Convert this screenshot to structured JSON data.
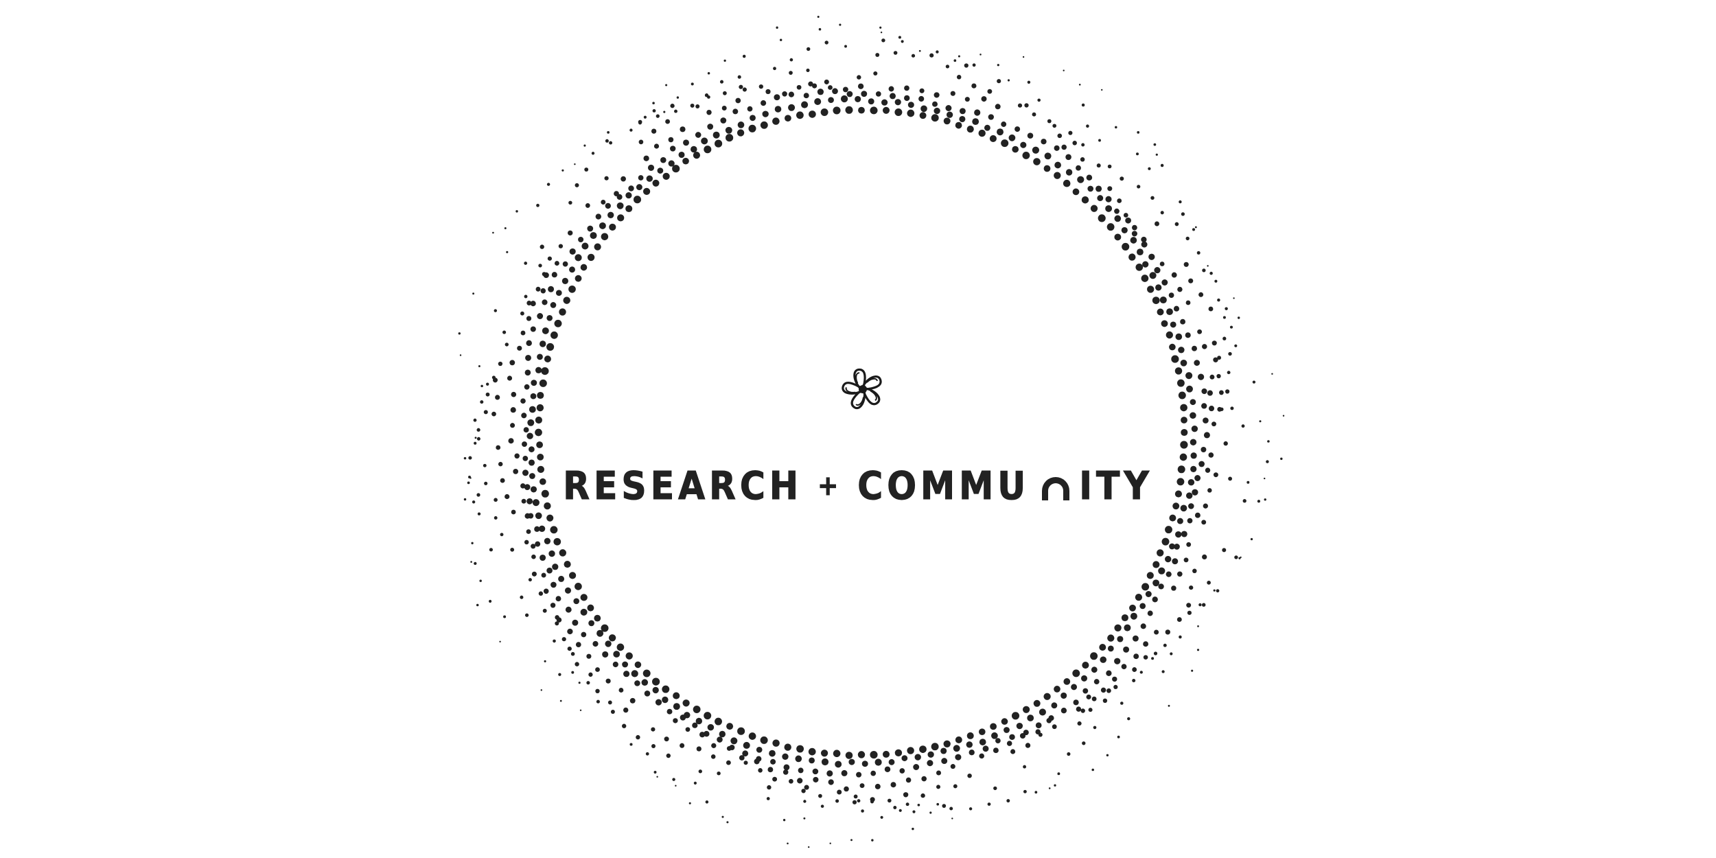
{
  "logo": {
    "wordmark": {
      "part1": "RESEARCH",
      "separator": "+",
      "part2_before": "COMMU",
      "part2_stylized_letter": "N",
      "part2_after": "ITY"
    },
    "emblem_icon": "pinwheel-flower-icon",
    "ring_style": "dotted halftone circle",
    "colors": {
      "ink": "#222222",
      "background": "#ffffff"
    }
  }
}
